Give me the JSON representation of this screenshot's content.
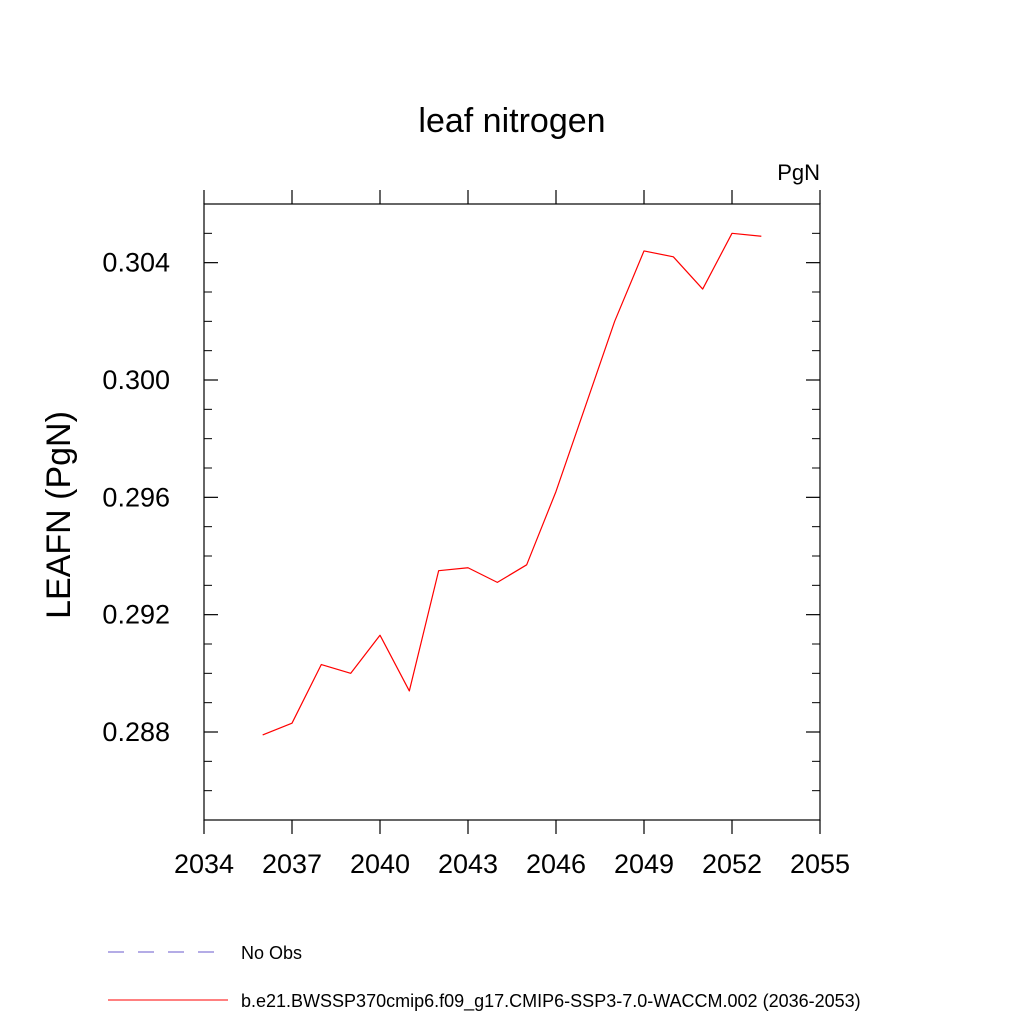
{
  "chart_data": {
    "type": "line",
    "title": "leaf nitrogen",
    "units_label": "PgN",
    "ylabel": "LEAFN  (PgN)",
    "xlabel": "",
    "xlim": [
      2034,
      2055
    ],
    "ylim": [
      0.285,
      0.306
    ],
    "x_ticks": [
      2034,
      2037,
      2040,
      2043,
      2046,
      2049,
      2052,
      2055
    ],
    "x_tick_labels": [
      "2034",
      "2037",
      "2040",
      "2043",
      "2046",
      "2049",
      "2052",
      "2055"
    ],
    "y_ticks": [
      0.288,
      0.292,
      0.296,
      0.3,
      0.304
    ],
    "y_tick_labels": [
      "0.288",
      "0.292",
      "0.296",
      "0.300",
      "0.304"
    ],
    "series": [
      {
        "name": "b.e21.BWSSP370cmip6.f09_g17.CMIP6-SSP3-7.0-WACCM.002 (2036-2053)",
        "color": "#ff0000",
        "style": "solid",
        "x": [
          2036,
          2037,
          2038,
          2039,
          2040,
          2041,
          2042,
          2043,
          2044,
          2045,
          2046,
          2047,
          2048,
          2049,
          2050,
          2051,
          2052,
          2053
        ],
        "values": [
          0.2879,
          0.2883,
          0.2903,
          0.29,
          0.2913,
          0.2894,
          0.2935,
          0.2936,
          0.2931,
          0.2937,
          0.2962,
          0.2991,
          0.302,
          0.3044,
          0.3042,
          0.3031,
          0.305,
          0.3049
        ]
      }
    ],
    "legend": [
      {
        "label": "No Obs",
        "color": "#6a5acd",
        "style": "dashed"
      },
      {
        "label": "b.e21.BWSSP370cmip6.f09_g17.CMIP6-SSP3-7.0-WACCM.002 (2036-2053)",
        "color": "#ff0000",
        "style": "solid"
      }
    ],
    "legend_position": "bottom",
    "grid": false
  }
}
